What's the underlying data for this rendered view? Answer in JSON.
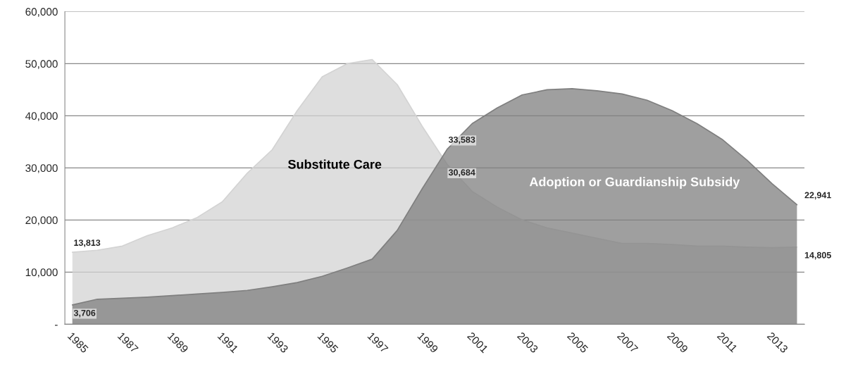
{
  "chart_data": {
    "type": "area",
    "categories": [
      "1985",
      null,
      "1987",
      null,
      "1989",
      null,
      "1991",
      null,
      "1993",
      null,
      "1995",
      null,
      "1997",
      null,
      "1999",
      null,
      "2001",
      null,
      "2003",
      null,
      "2005",
      null,
      "2007",
      null,
      "2009",
      null,
      "2011",
      null,
      "2013",
      null
    ],
    "series": [
      {
        "name": "Substitute Care",
        "color": "#d3d3d3",
        "values": [
          13813,
          14200,
          15000,
          17000,
          18500,
          20500,
          23500,
          29000,
          33500,
          41000,
          47500,
          50000,
          50800,
          46000,
          38000,
          30684,
          25500,
          22500,
          20000,
          18500,
          17500,
          16500,
          15500,
          15500,
          15300,
          15000,
          15000,
          14800,
          14700,
          14805
        ],
        "value_labels": [
          "13,813",
          null,
          null,
          null,
          null,
          null,
          null,
          null,
          null,
          null,
          null,
          null,
          null,
          null,
          null,
          "30,684",
          null,
          null,
          null,
          null,
          null,
          null,
          null,
          null,
          null,
          null,
          null,
          null,
          null,
          "14,805"
        ]
      },
      {
        "name": "Adoption or Guardianship Subsidy",
        "color": "#7f7f7f",
        "values": [
          3706,
          4800,
          5000,
          5200,
          5500,
          5800,
          6100,
          6500,
          7200,
          8000,
          9200,
          10800,
          12500,
          18000,
          26000,
          33583,
          38500,
          41500,
          44000,
          45000,
          45200,
          44800,
          44200,
          43000,
          41000,
          38500,
          35500,
          31500,
          27000,
          22941
        ],
        "value_labels": [
          "3,706",
          null,
          null,
          null,
          null,
          null,
          null,
          null,
          null,
          null,
          null,
          null,
          null,
          null,
          null,
          "33,583",
          null,
          null,
          null,
          null,
          null,
          null,
          null,
          null,
          null,
          null,
          null,
          null,
          null,
          "22,941"
        ]
      }
    ],
    "ylim": [
      0,
      60000
    ],
    "yticks": [
      {
        "value": 0,
        "label": "-"
      },
      {
        "value": 10000,
        "label": "10,000"
      },
      {
        "value": 20000,
        "label": "20,000"
      },
      {
        "value": 30000,
        "label": "30,000"
      },
      {
        "value": 40000,
        "label": "40,000"
      },
      {
        "value": 50000,
        "label": "50,000"
      },
      {
        "value": 60000,
        "label": "60,000"
      }
    ],
    "grid": "y",
    "legend": false
  }
}
